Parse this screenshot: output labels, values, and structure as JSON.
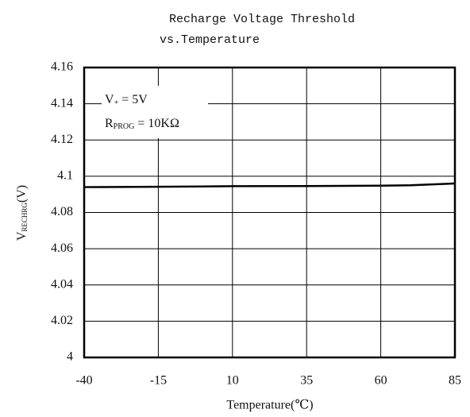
{
  "chart_data": {
    "type": "line",
    "title": [
      "Recharge Voltage Threshold",
      "vs.Temperature"
    ],
    "x_label": "Temperature(℃)",
    "y_label": {
      "main": "V",
      "sub": "RECHRG",
      "rest": "(V)"
    },
    "annotations": [
      {
        "main": "V",
        "sub": "+",
        "rest": " = 5V"
      },
      {
        "main": "R",
        "sub": "PROG",
        "rest": " = 10KΩ"
      }
    ],
    "x": [
      -40,
      -15,
      10,
      35,
      60,
      70,
      85
    ],
    "series": [
      {
        "name": "VRECHRG",
        "color": "#000000",
        "values": [
          4.094,
          4.0942,
          4.0945,
          4.0946,
          4.0948,
          4.095,
          4.096
        ]
      }
    ],
    "xlim": [
      -40,
      85
    ],
    "xticks": [
      -40,
      -15,
      10,
      35,
      60,
      85
    ],
    "ylim": [
      4,
      4.16
    ],
    "yticks": [
      4,
      4.02,
      4.04,
      4.06,
      4.08,
      4.1,
      4.12,
      4.14,
      4.16
    ],
    "grid": true
  }
}
